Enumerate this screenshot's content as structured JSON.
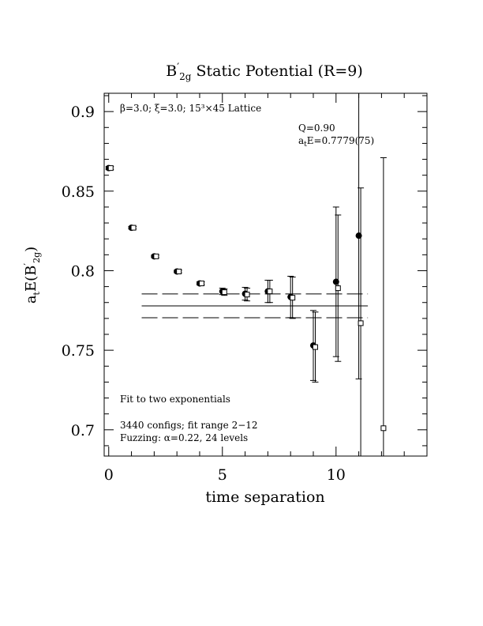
{
  "chart_data": {
    "type": "scatter",
    "title": {
      "main": "B",
      "prime": "′",
      "sub": "2g",
      "rest": " Static Potential (R=9)"
    },
    "xlabel": "time separation",
    "ylabel": {
      "pre": "a",
      "pre_sub": "t",
      "mid": "E(B",
      "prime": "′",
      "sub": "2g",
      "post": ")"
    },
    "xlim": [
      -0.2,
      14.0
    ],
    "ylim": [
      0.6835,
      0.9115
    ],
    "x_ticks": [
      0,
      5,
      10
    ],
    "x_tick_labels": [
      "0",
      "5",
      "10"
    ],
    "y_ticks": [
      0.7,
      0.75,
      0.8,
      0.85,
      0.9
    ],
    "y_tick_labels": [
      "0.7",
      "0.75",
      "0.8",
      "0.85",
      "0.9"
    ],
    "annotations": {
      "lattice": "β=3.0; ξ=3.0; 15³×45 Lattice",
      "q": "Q=0.90",
      "ate_pre": "a",
      "ate_sub": "t",
      "ate_post": "E=0.7779(75)",
      "fit": "Fit to two exponentials",
      "configs": "3440 configs; fit range 2−12",
      "fuzzing": "Fuzzing: α=0.22, 24 levels"
    },
    "fit": {
      "value": 0.7779,
      "error": 0.0075,
      "x_range": [
        1.45,
        11.4
      ]
    },
    "series": [
      {
        "marker": "filled-circle",
        "points": [
          {
            "x": 0,
            "y": 0.8645,
            "err": 0.001
          },
          {
            "x": 1,
            "y": 0.827,
            "err": 0.0008
          },
          {
            "x": 2,
            "y": 0.809,
            "err": 0.0008
          },
          {
            "x": 3,
            "y": 0.7995,
            "err": 0.0008
          },
          {
            "x": 4,
            "y": 0.792,
            "err": 0.001
          },
          {
            "x": 5,
            "y": 0.787,
            "err": 0.002
          },
          {
            "x": 6,
            "y": 0.7855,
            "err": 0.004
          },
          {
            "x": 7,
            "y": 0.787,
            "err": 0.007
          },
          {
            "x": 8,
            "y": 0.7835,
            "err": 0.013
          },
          {
            "x": 9,
            "y": 0.753,
            "err": 0.022
          },
          {
            "x": 10,
            "y": 0.793,
            "err": 0.047
          },
          {
            "x": 11,
            "y": 0.822,
            "err": 0.09
          }
        ]
      },
      {
        "marker": "open-square",
        "points": [
          {
            "x": 0,
            "y": 0.8645,
            "err": 0.001
          },
          {
            "x": 1,
            "y": 0.827,
            "err": 0.0008
          },
          {
            "x": 2,
            "y": 0.809,
            "err": 0.0008
          },
          {
            "x": 3,
            "y": 0.7995,
            "err": 0.0008
          },
          {
            "x": 4,
            "y": 0.792,
            "err": 0.001
          },
          {
            "x": 5,
            "y": 0.7865,
            "err": 0.002
          },
          {
            "x": 6,
            "y": 0.785,
            "err": 0.004
          },
          {
            "x": 7,
            "y": 0.787,
            "err": 0.007
          },
          {
            "x": 8,
            "y": 0.783,
            "err": 0.013
          },
          {
            "x": 9,
            "y": 0.752,
            "err": 0.022
          },
          {
            "x": 10,
            "y": 0.789,
            "err": 0.046
          },
          {
            "x": 11,
            "y": 0.767,
            "err": 0.085
          },
          {
            "x": 12,
            "y": 0.701,
            "err": 0.17
          }
        ]
      }
    ]
  }
}
